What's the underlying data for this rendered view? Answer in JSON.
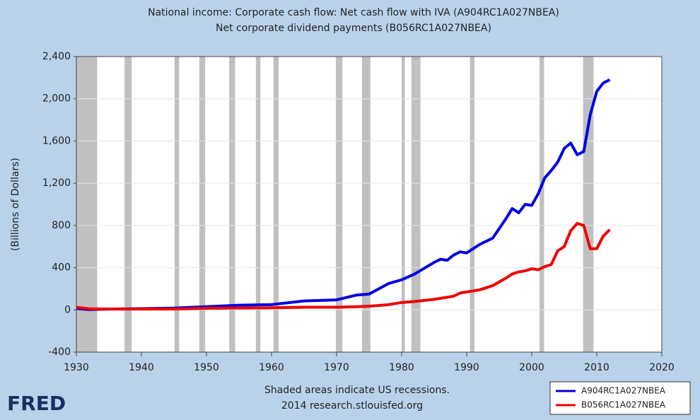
{
  "chart_data": {
    "type": "line",
    "title": "National income: Corporate cash flow: Net cash flow with IVA (A904RC1A027NBEA)",
    "subtitle": "Net corporate dividend payments (B056RC1A027NBEA)",
    "y_label": "(Billions of Dollars)",
    "note": "Shaded areas indicate US recessions.",
    "source": "2014 research.stlouisfed.org",
    "logo": "FRED",
    "x": [
      1930,
      1932,
      1935,
      1940,
      1945,
      1950,
      1955,
      1960,
      1965,
      1970,
      1973,
      1975,
      1978,
      1980,
      1982,
      1985,
      1986,
      1987,
      1988,
      1989,
      1990,
      1992,
      1994,
      1996,
      1997,
      1998,
      1999,
      2000,
      2001,
      2002,
      2003,
      2004,
      2005,
      2006,
      2007,
      2008,
      2009,
      2010,
      2011,
      2012
    ],
    "series": [
      {
        "name": "A904RC1A027NBEA",
        "color": "#0000dd",
        "values": [
          14,
          3,
          8,
          12,
          17,
          30,
          45,
          50,
          85,
          95,
          140,
          150,
          250,
          285,
          340,
          450,
          480,
          470,
          520,
          550,
          540,
          620,
          680,
          860,
          960,
          920,
          1000,
          990,
          1100,
          1250,
          1320,
          1400,
          1530,
          1580,
          1470,
          1500,
          1850,
          2070,
          2150,
          2180
        ]
      },
      {
        "name": "B056RC1A027NBEA",
        "color": "#ee0000",
        "values": [
          25,
          10,
          8,
          8,
          8,
          15,
          18,
          20,
          25,
          25,
          30,
          35,
          50,
          70,
          80,
          100,
          110,
          120,
          130,
          160,
          170,
          190,
          230,
          300,
          340,
          360,
          370,
          390,
          380,
          410,
          430,
          560,
          600,
          750,
          820,
          800,
          580,
          580,
          700,
          760
        ]
      }
    ],
    "recessions": [
      [
        1930,
        1933.2
      ],
      [
        1937.4,
        1938.5
      ],
      [
        1945.1,
        1945.8
      ],
      [
        1948.9,
        1949.8
      ],
      [
        1953.5,
        1954.4
      ],
      [
        1957.6,
        1958.3
      ],
      [
        1960.3,
        1961.1
      ],
      [
        1969.9,
        1970.9
      ],
      [
        1973.9,
        1975.2
      ],
      [
        1980.0,
        1980.5
      ],
      [
        1981.5,
        1982.9
      ],
      [
        1990.5,
        1991.2
      ],
      [
        2001.2,
        2001.9
      ],
      [
        2007.9,
        2009.5
      ]
    ],
    "recession_color": "#c0c0c0",
    "xlim": [
      1930,
      2020
    ],
    "xticks": [
      1930,
      1940,
      1950,
      1960,
      1970,
      1980,
      1990,
      2000,
      2010,
      2020
    ],
    "ylim": [
      -400,
      2400
    ],
    "yticks": [
      -400,
      0,
      400,
      800,
      {
        "value": 1200,
        "label": "1,200"
      },
      {
        "value": 1600,
        "label": "1,600"
      },
      {
        "value": 2000,
        "label": "2,000"
      },
      {
        "value": 2400,
        "label": "2,400"
      }
    ],
    "grid": true,
    "legend": "lower right"
  }
}
